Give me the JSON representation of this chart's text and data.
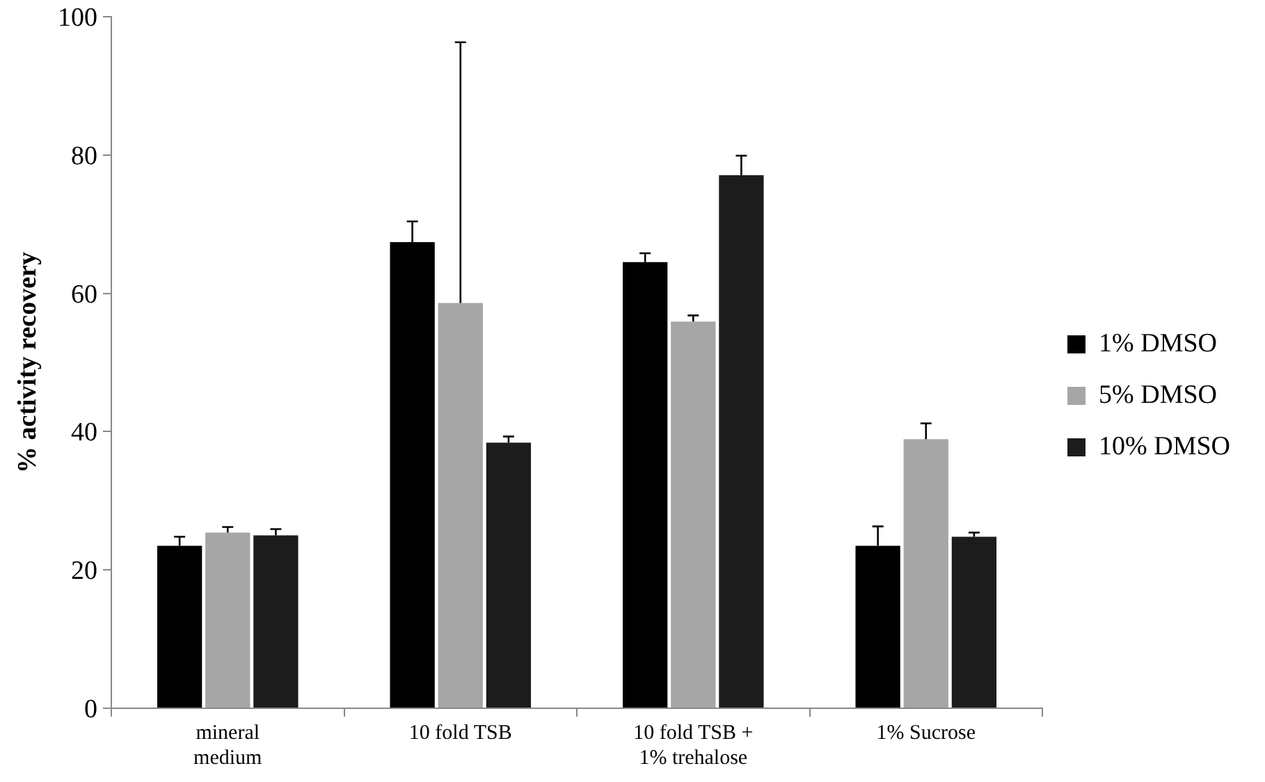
{
  "chart_data": {
    "type": "bar",
    "ylabel": "% activity recovery",
    "categories": [
      "mineral\nmedium",
      "10 fold TSB",
      "10 fold TSB +\n1% trehalose",
      "1% Sucrose"
    ],
    "series": [
      {
        "name": "1% DMSO",
        "color": "#000000",
        "values": [
          23.5,
          67.4,
          64.5,
          23.5
        ],
        "errors": [
          [
            23.5,
            24.8
          ],
          [
            67.4,
            70.4
          ],
          [
            64.5,
            65.8
          ],
          [
            23.5,
            26.3
          ]
        ]
      },
      {
        "name": "5% DMSO",
        "color": "#a6a6a6",
        "values": [
          25.4,
          58.6,
          55.9,
          38.9
        ],
        "errors": [
          [
            25.4,
            26.2
          ],
          [
            58.6,
            96.3
          ],
          [
            55.9,
            56.8
          ],
          [
            38.9,
            41.2
          ]
        ]
      },
      {
        "name": "10% DMSO",
        "color": "#1c1c1c",
        "values": [
          25,
          38.4,
          77.1,
          24.8
        ],
        "errors": [
          [
            25,
            25.9
          ],
          [
            38.4,
            39.3
          ],
          [
            77.1,
            79.9
          ],
          [
            24.8,
            25.4
          ]
        ]
      }
    ],
    "ylim": [
      0,
      100
    ],
    "yticks": [
      0,
      20,
      40,
      60,
      80,
      100
    ],
    "legend": "right"
  }
}
